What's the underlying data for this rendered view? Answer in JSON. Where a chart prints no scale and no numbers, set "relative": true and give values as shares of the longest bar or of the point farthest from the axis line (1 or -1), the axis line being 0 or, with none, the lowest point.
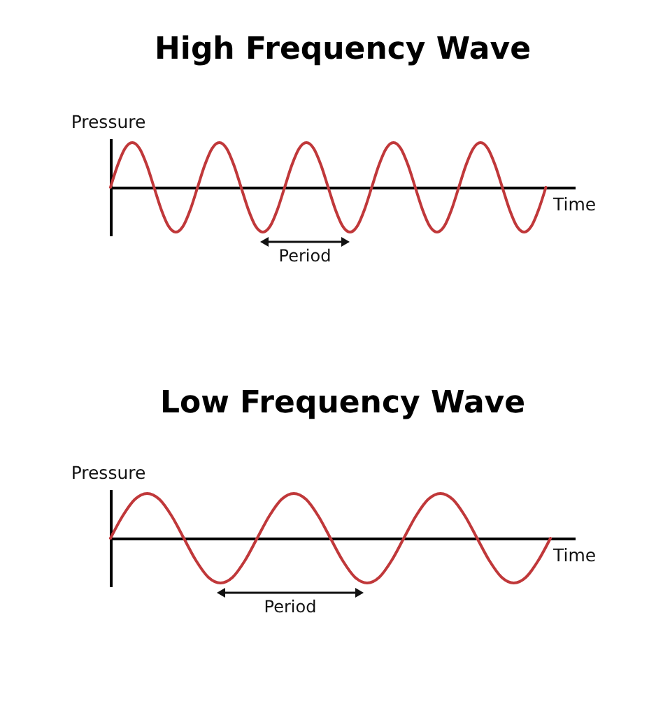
{
  "chart_data": [
    {
      "type": "line",
      "title": "High Frequency Wave",
      "xlabel": "Time",
      "ylabel": "Pressure",
      "relative": true,
      "annotations": [
        "Period"
      ],
      "categories": [
        null,
        null,
        null,
        null,
        null,
        null,
        null,
        null,
        null,
        null,
        null,
        null,
        null,
        null,
        null,
        null,
        null,
        null,
        null,
        null,
        null,
        null,
        null,
        null,
        null,
        null,
        null,
        null,
        null,
        null,
        null,
        null,
        null,
        null,
        null,
        null,
        null,
        null,
        null,
        null,
        null,
        null,
        null,
        null,
        null,
        null,
        null,
        null,
        null,
        null,
        null,
        null,
        null,
        null,
        null,
        null,
        null,
        null,
        null,
        null,
        null,
        null,
        null,
        null,
        null
      ],
      "series": [
        {
          "color": "#c0383a",
          "values": [
            0,
            0.5,
            0.87,
            1,
            0.87,
            0.5,
            0,
            -0.5,
            -0.87,
            -1,
            -0.87,
            -0.5,
            0,
            0.5,
            0.87,
            1,
            0.87,
            0.5,
            0,
            -0.5,
            -0.87,
            -1,
            -0.87,
            -0.5,
            0,
            0.5,
            0.87,
            1,
            0.87,
            0.5,
            0,
            -0.5,
            -0.87,
            -1,
            -0.87,
            -0.5,
            0,
            0.5,
            0.87,
            1,
            0.87,
            0.5,
            0,
            -0.5,
            -0.87,
            -1,
            -0.87,
            -0.5,
            0,
            0.5,
            0.87,
            1,
            0.87,
            0.5,
            0,
            -0.5,
            -0.87,
            -1,
            -0.87,
            -0.5,
            0,
            null,
            null,
            null,
            null
          ]
        }
      ]
    },
    {
      "type": "line",
      "title": "Low Frequency Wave",
      "xlabel": "Time",
      "ylabel": "Pressure",
      "relative": true,
      "annotations": [
        "Period"
      ],
      "categories": [
        null,
        null,
        null,
        null,
        null,
        null,
        null,
        null,
        null,
        null,
        null,
        null,
        null,
        null,
        null,
        null,
        null,
        null,
        null,
        null,
        null,
        null,
        null,
        null,
        null,
        null,
        null,
        null,
        null,
        null,
        null,
        null,
        null,
        null,
        null,
        null,
        null,
        null,
        null
      ],
      "series": [
        {
          "color": "#c0383a",
          "values": [
            0,
            0.5,
            0.87,
            1,
            0.87,
            0.5,
            0,
            -0.5,
            -0.87,
            -1,
            -0.87,
            -0.5,
            0,
            0.5,
            0.87,
            1,
            0.87,
            0.5,
            0,
            -0.5,
            -0.87,
            -1,
            -0.87,
            -0.5,
            0,
            0.5,
            0.87,
            1,
            0.87,
            0.5,
            0,
            -0.5,
            -0.87,
            -1,
            -0.87,
            -0.5,
            0,
            null,
            null
          ]
        }
      ]
    }
  ]
}
